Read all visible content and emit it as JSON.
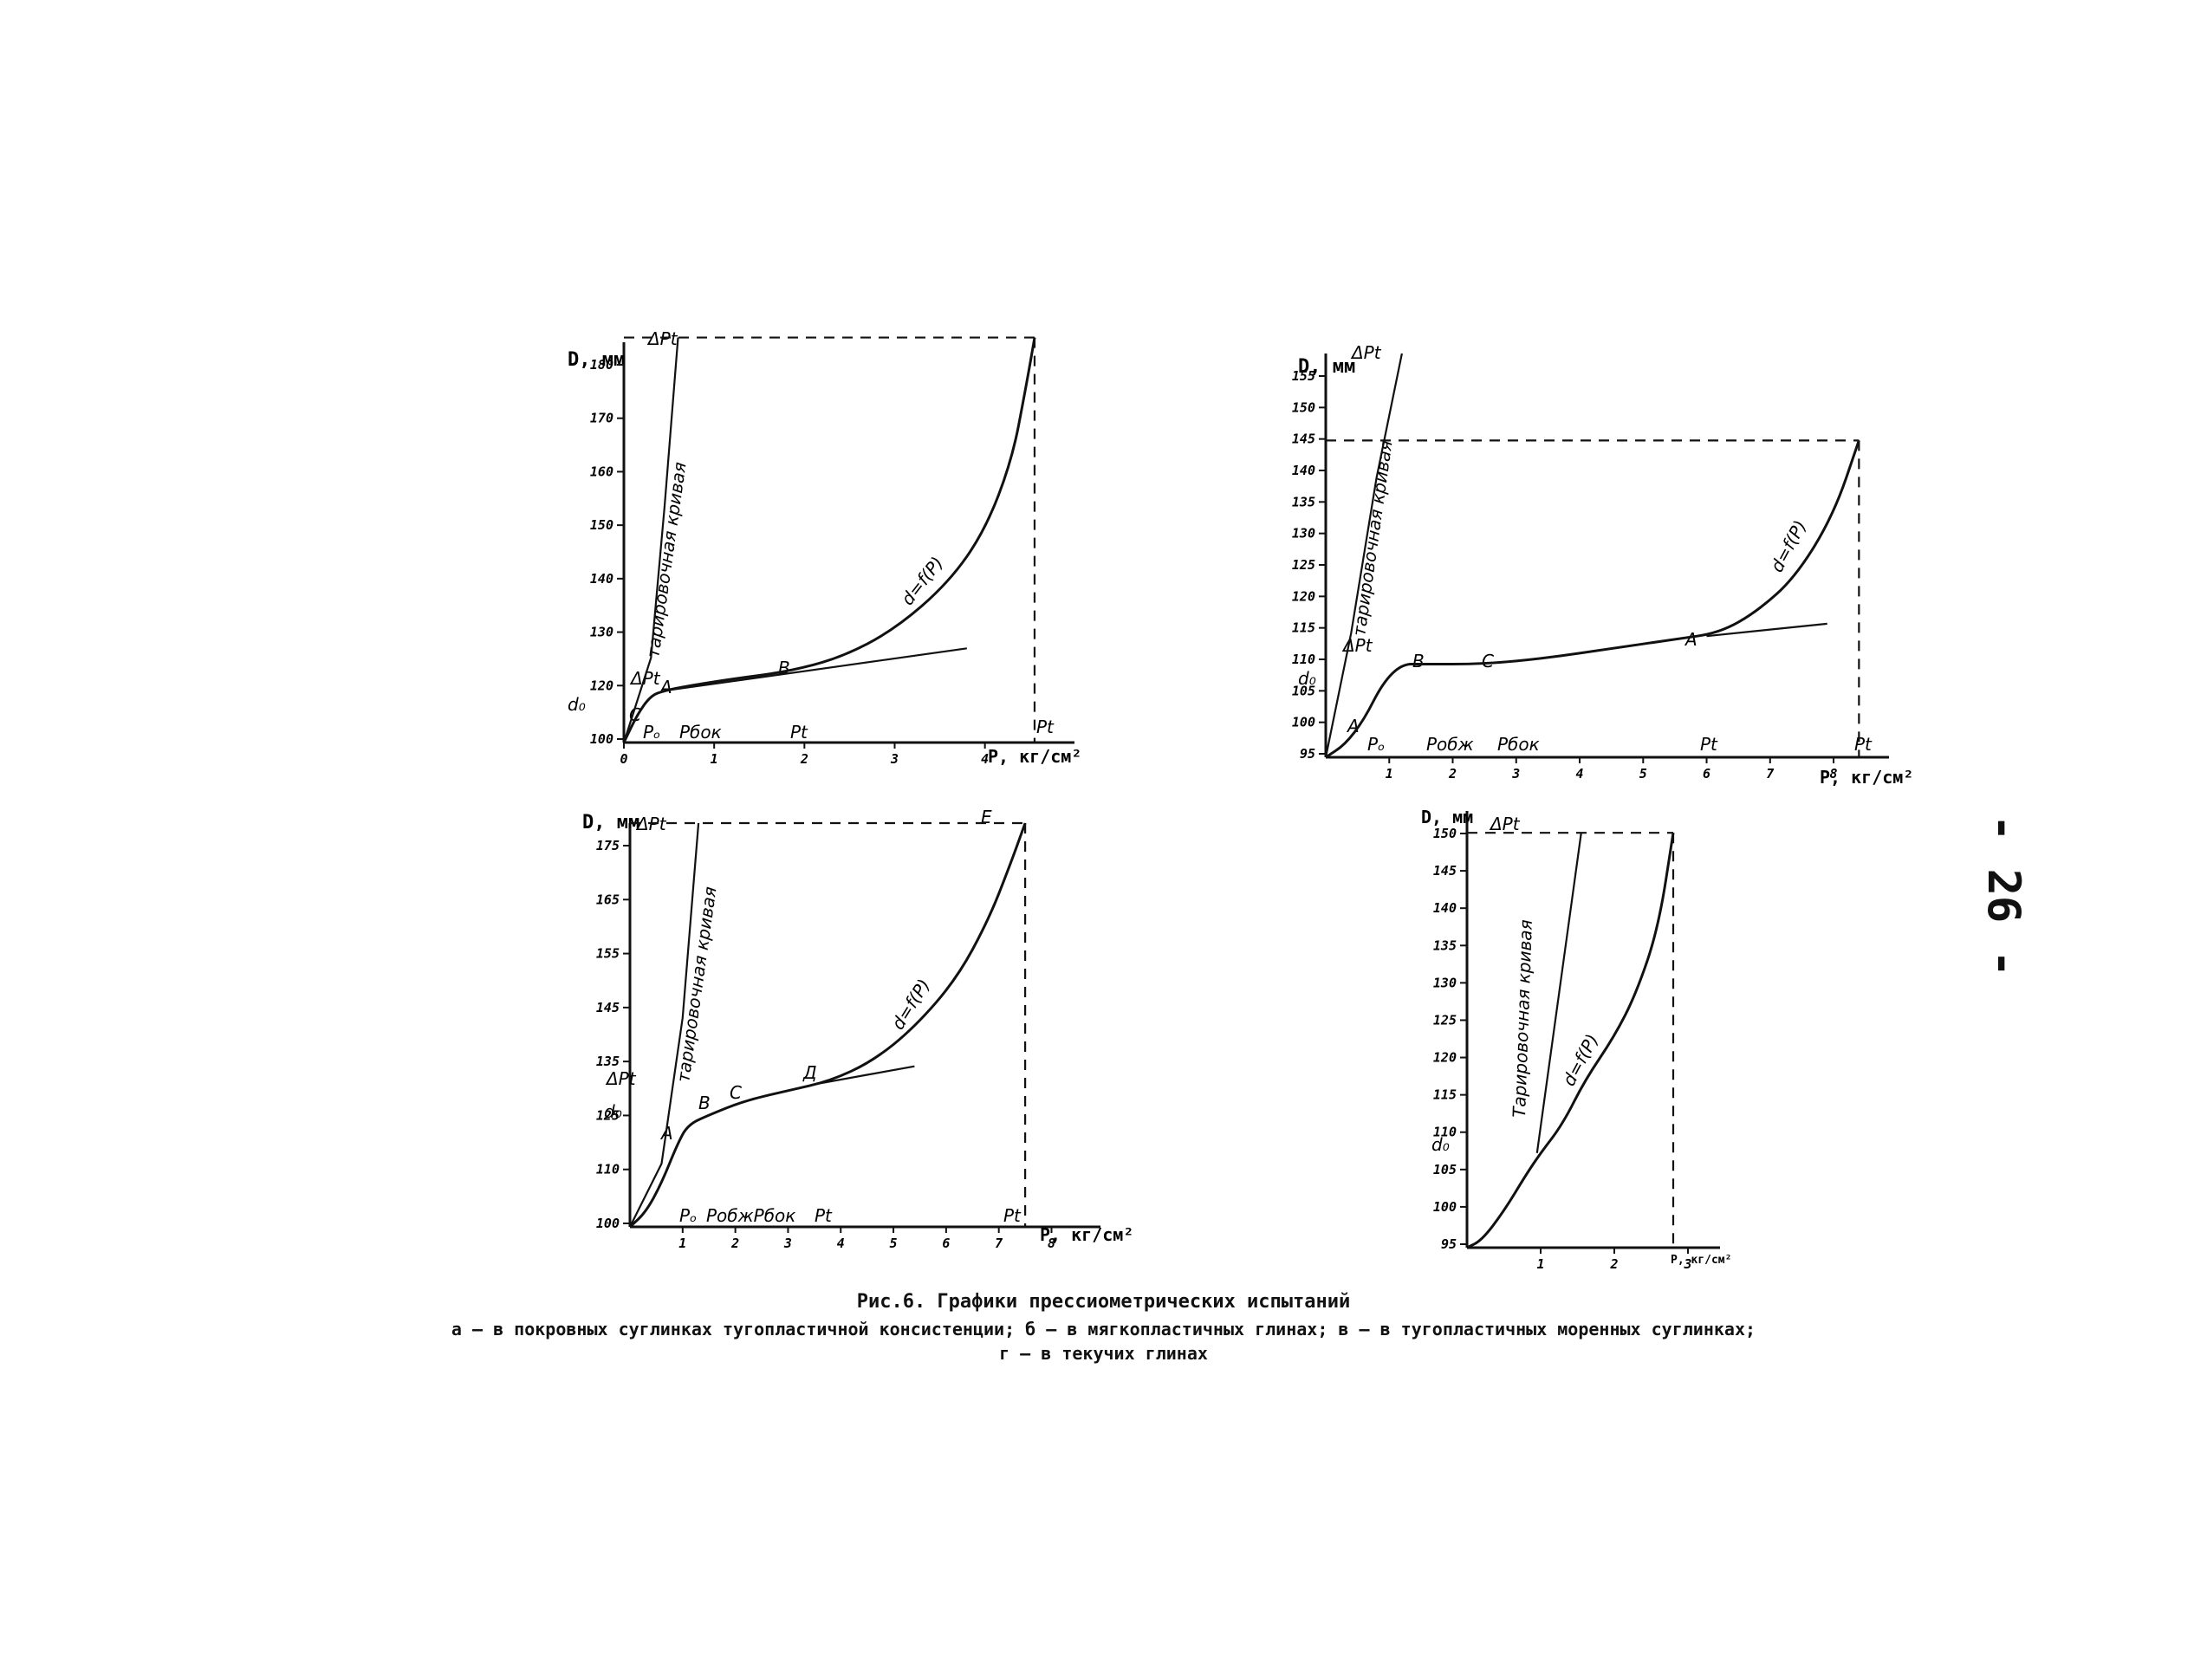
{
  "page_number": "- 26 -",
  "caption": {
    "title": "Рис.6. Графики прессиометрических испытаний",
    "line2": "а – в покровных суглинках тугопластичной консистенции; б – в мягкопластичных глинах; в – в тугопластичных моренных суглинках;",
    "line3": "г – в текучих глинах"
  },
  "chart_data": [
    {
      "id": "a",
      "type": "line",
      "ylabel": "D, мм",
      "xlabel": "P, кг/см²",
      "xlim": [
        0,
        4.8
      ],
      "ylim": [
        100,
        185
      ],
      "x_ticks": [
        "0",
        "1",
        "2",
        "3",
        "4"
      ],
      "y_ticks": [
        "100",
        "120",
        "130",
        "140",
        "150",
        "160",
        "170",
        "180"
      ],
      "extra_y_labels": [
        "d₀"
      ],
      "calibration_label": "тарировочная кривая",
      "curve_label": "d=f(P)",
      "point_labels": [
        "C",
        "A",
        "B"
      ],
      "pressure_labels": [
        "Pₒ",
        "Pбок",
        "Pt",
        "Pt"
      ],
      "top_marker": "ΔPt",
      "mid_marker": "ΔPt",
      "calibration": {
        "x": [
          0,
          0.3,
          0.45,
          0.6
        ],
        "y": [
          100,
          118,
          150,
          186
        ]
      },
      "series": [
        {
          "name": "d=f(P)",
          "x": [
            0,
            0.15,
            0.3,
            0.45,
            0.7,
            1.2,
            1.8,
            2.4,
            3.0,
            3.6,
            4.0,
            4.3,
            4.45,
            4.55
          ],
          "y": [
            100,
            106,
            110,
            111,
            112,
            113.5,
            115,
            118,
            124,
            134,
            145,
            160,
            175,
            186
          ]
        },
        {
          "name": "",
          "x": [
            0.45,
            3.8
          ],
          "y": [
            111,
            120
          ]
        }
      ]
    },
    {
      "id": "b",
      "type": "line",
      "ylabel": "D, мм",
      "xlabel": "P, кг/см²",
      "xlim": [
        0,
        8.6
      ],
      "ylim": [
        95,
        160
      ],
      "x_ticks": [
        "1",
        "2",
        "3",
        "4",
        "5",
        "6",
        "7",
        "8"
      ],
      "y_ticks": [
        "95",
        "100",
        "105",
        "110",
        "115",
        "120",
        "125",
        "130",
        "135",
        "140",
        "145",
        "150",
        "155"
      ],
      "extra_y_labels": [
        "d₀"
      ],
      "calibration_label": "тарировочная кривая",
      "curve_label": "d=f(P)",
      "point_labels": [
        "A",
        "B",
        "C",
        "A"
      ],
      "pressure_labels": [
        "Pₒ",
        "Pобж",
        "Pбок",
        "Pt",
        "Pt"
      ],
      "top_marker": "ΔPt",
      "mid_marker": "ΔPt",
      "calibration": {
        "x": [
          0,
          0.4,
          0.8,
          1.2
        ],
        "y": [
          95,
          115,
          140,
          160
        ]
      },
      "series": [
        {
          "name": "d=f(P)",
          "x": [
            0,
            0.3,
            0.6,
            0.9,
            1.2,
            1.5,
            2.5,
            3.5,
            4.5,
            5.5,
            6.2,
            6.8,
            7.4,
            8.0,
            8.4
          ],
          "y": [
            95,
            97,
            101,
            107,
            110,
            110,
            110,
            111,
            112.5,
            114,
            115,
            118.5,
            124,
            134,
            146
          ]
        },
        {
          "name": "",
          "x": [
            6.0,
            7.9
          ],
          "y": [
            114.5,
            116.5
          ]
        }
      ]
    },
    {
      "id": "v",
      "type": "line",
      "ylabel": "D, мм",
      "xlabel": "P, кг/см²",
      "xlim": [
        0,
        8.6
      ],
      "ylim": [
        97,
        180
      ],
      "x_ticks": [
        "1",
        "2",
        "3",
        "4",
        "5",
        "6",
        "7",
        "8"
      ],
      "y_ticks": [
        "100",
        "110",
        "125",
        "135",
        "145",
        "155",
        "165",
        "175"
      ],
      "extra_y_labels": [
        "d₀"
      ],
      "calibration_label": "тарировочная кривая",
      "curve_label": "d=f(P)",
      "point_labels": [
        "A",
        "B",
        "C",
        "Д",
        "E"
      ],
      "pressure_labels": [
        "Pₒ",
        "PобжPбок",
        "Pt",
        "Pt"
      ],
      "top_marker": "ΔPt",
      "mid_marker": "ΔPt",
      "calibration": {
        "x": [
          0,
          0.6,
          1.0,
          1.3
        ],
        "y": [
          97,
          110,
          140,
          180
        ]
      },
      "series": [
        {
          "name": "d=f(P)",
          "x": [
            0,
            0.3,
            0.6,
            0.9,
            1.1,
            1.5,
            2.2,
            3.0,
            3.8,
            4.6,
            5.4,
            6.2,
            6.8,
            7.2,
            7.5
          ],
          "y": [
            97,
            100,
            106,
            114,
            118,
            120,
            123,
            125,
            127,
            131,
            138,
            148,
            160,
            171,
            180
          ]
        },
        {
          "name": "",
          "x": [
            3.6,
            5.4
          ],
          "y": [
            126.5,
            130
          ]
        }
      ]
    },
    {
      "id": "g",
      "type": "line",
      "ylabel": "D, мм",
      "xlabel": "P, кг/см²",
      "xlim": [
        0,
        3.2
      ],
      "ylim": [
        95,
        155
      ],
      "x_ticks": [
        "1",
        "2",
        "3"
      ],
      "y_ticks": [
        "95",
        "100",
        "105",
        "110",
        "115",
        "120",
        "125",
        "130",
        "135",
        "140",
        "145",
        "150"
      ],
      "extra_y_labels": [
        "d₀"
      ],
      "calibration_label": "Тарировочная кривая",
      "curve_label": "d=f(P)",
      "point_labels": [],
      "pressure_labels": [],
      "top_marker": "ΔPt",
      "mid_marker": "",
      "calibration": {
        "x": [
          0.95,
          1.55
        ],
        "y": [
          108,
          152
        ]
      },
      "series": [
        {
          "name": "d=f(P)",
          "x": [
            0,
            0.2,
            0.5,
            0.8,
            1.0,
            1.3,
            1.6,
            2.0,
            2.3,
            2.6,
            2.8
          ],
          "y": [
            95,
            96,
            100,
            105,
            108,
            112,
            118,
            124,
            130,
            139,
            152
          ]
        }
      ]
    }
  ]
}
